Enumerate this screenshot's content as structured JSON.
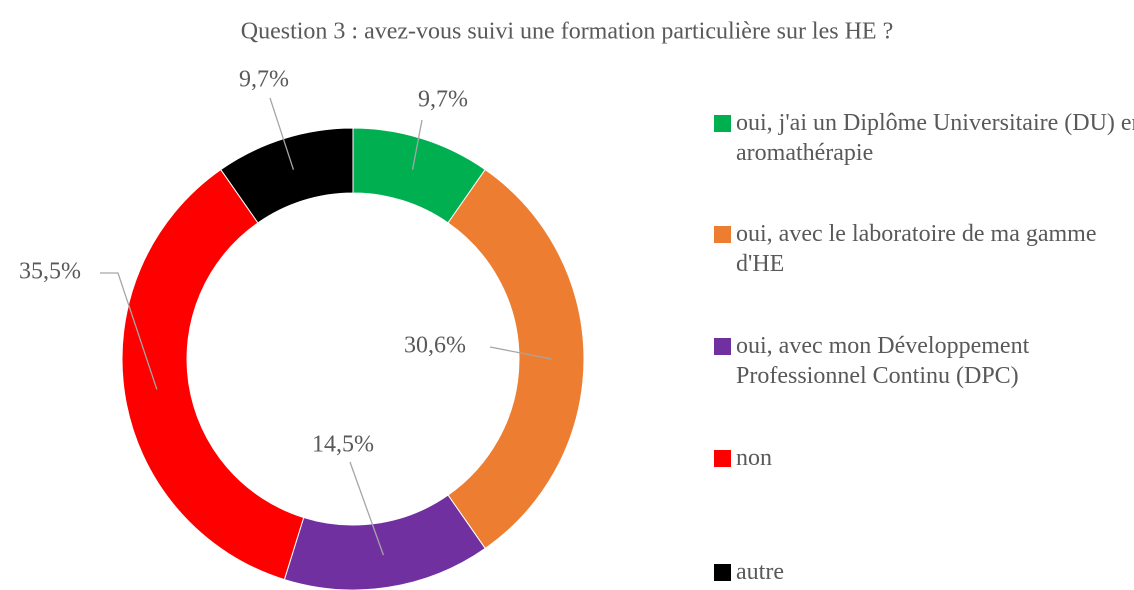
{
  "chart_data": {
    "type": "donut",
    "title": "Question 3 : avez-vous suivi une formation particulière sur les HE ?",
    "categories": [
      "oui, j'ai un Diplôme Universitaire (DU) en aromathérapie",
      "oui, avec le laboratoire de ma gamme d'HE",
      "oui, avec mon Développement Professionnel Continu (DPC)",
      "non",
      "autre"
    ],
    "values": [
      9.7,
      30.6,
      14.5,
      35.5,
      9.7
    ],
    "value_labels": [
      "9,7%",
      "30,6%",
      "14,5%",
      "35,5%",
      "9,7%"
    ],
    "colors": [
      "#00b050",
      "#ed7d31",
      "#7030a0",
      "#ff0000",
      "#000000"
    ]
  }
}
